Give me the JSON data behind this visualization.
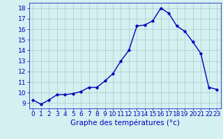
{
  "hours": [
    0,
    1,
    2,
    3,
    4,
    5,
    6,
    7,
    8,
    9,
    10,
    11,
    12,
    13,
    14,
    15,
    16,
    17,
    18,
    19,
    20,
    21,
    22,
    23
  ],
  "temps": [
    9.3,
    8.9,
    9.3,
    9.8,
    9.8,
    9.9,
    10.1,
    10.5,
    10.5,
    11.1,
    11.8,
    13.0,
    14.0,
    16.3,
    16.4,
    16.8,
    18.0,
    17.5,
    16.3,
    15.8,
    14.8,
    13.7,
    10.5,
    10.3
  ],
  "line_color": "#0000bb",
  "marker": "o",
  "marker_size": 2.5,
  "bg_color": "#d4f0f0",
  "grid_color": "#aacccc",
  "xlabel": "Graphe des températures (°c)",
  "xlabel_color": "#0000bb",
  "ylabel_color": "#0000bb",
  "tick_color": "#0000bb",
  "ylim": [
    8.5,
    18.5
  ],
  "yticks": [
    9,
    10,
    11,
    12,
    13,
    14,
    15,
    16,
    17,
    18
  ],
  "xticks": [
    0,
    1,
    2,
    3,
    4,
    5,
    6,
    7,
    8,
    9,
    10,
    11,
    12,
    13,
    14,
    15,
    16,
    17,
    18,
    19,
    20,
    21,
    22,
    23
  ],
  "xlim": [
    -0.5,
    23.5
  ],
  "axis_fontsize": 6.5,
  "xlabel_fontsize": 7.5,
  "linewidth": 1.0
}
